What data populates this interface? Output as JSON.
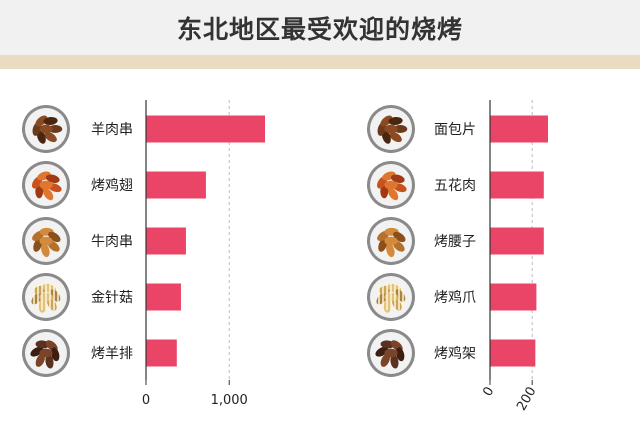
{
  "title": "东北地区最受欢迎的烧烤",
  "colors": {
    "bar": "#ea4466",
    "axis": "#333333",
    "grid": "#bbbbbb",
    "header_bg": "#f1f1f1",
    "band": "#e9dcc2"
  },
  "chart_data": [
    {
      "type": "bar",
      "orientation": "horizontal",
      "categories": [
        "羊肉串",
        "烤鸡翅",
        "牛肉串",
        "金针菇",
        "烤羊排"
      ],
      "values": [
        1430,
        720,
        480,
        420,
        370
      ],
      "xlim": [
        0,
        1450
      ],
      "xticks": [
        0,
        1000
      ],
      "xtick_labels": [
        "0",
        "1,000"
      ],
      "grid": "vertical dashed at 1,000",
      "icons": [
        "lamb-skewer-photo-icon",
        "grilled-chicken-wing-photo-icon",
        "beef-skewer-photo-icon",
        "enoki-mushroom-photo-icon",
        "lamb-chop-photo-icon"
      ]
    },
    {
      "type": "bar",
      "orientation": "horizontal",
      "categories": [
        "面包片",
        "五花肉",
        "烤腰子",
        "烤鸡爪",
        "烤鸡架"
      ],
      "values": [
        275,
        255,
        255,
        220,
        215
      ],
      "xlim": [
        0,
        290
      ],
      "xticks": [
        0,
        200
      ],
      "xtick_labels": [
        "0",
        "200"
      ],
      "grid": "vertical dashed at 200",
      "icons": [
        "bread-slice-photo-icon",
        "pork-belly-photo-icon",
        "grilled-kidney-photo-icon",
        "chicken-feet-photo-icon",
        "chicken-rack-photo-icon"
      ]
    }
  ]
}
